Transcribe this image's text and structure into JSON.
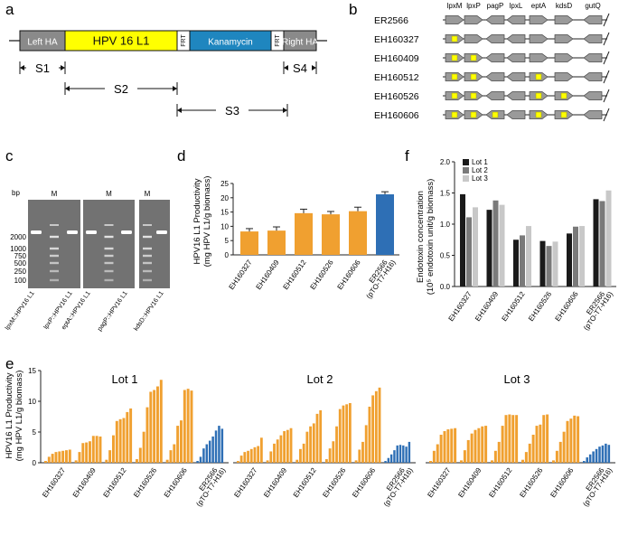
{
  "panels": {
    "a": {
      "letter": "a",
      "segments": [
        {
          "label": "Left HA",
          "fill": "#8a8a8a",
          "text_color": "#ffffff"
        },
        {
          "label": "HPV 16 L1",
          "fill": "#ffff00",
          "text_color": "#111111"
        },
        {
          "label": "FRT",
          "fill": "#ffffff",
          "text_color": "#111111"
        },
        {
          "label": "Kanamycin",
          "fill": "#1f86bf",
          "text_color": "#ffffff"
        },
        {
          "label": "FRT",
          "fill": "#ffffff",
          "text_color": "#111111"
        },
        {
          "label": "Right HA",
          "fill": "#8a8a8a",
          "text_color": "#ffffff"
        }
      ],
      "spans": [
        {
          "label": "S1"
        },
        {
          "label": "S2"
        },
        {
          "label": "S3"
        },
        {
          "label": "S4"
        }
      ]
    },
    "b": {
      "letter": "b",
      "genes": [
        "lpxM",
        "lpxP",
        "pagP",
        "lpxL",
        "eptA",
        "kdsD",
        "gutQ"
      ],
      "strains": [
        {
          "name": "ER2566",
          "yellow_marks": []
        },
        {
          "name": "EH160327",
          "yellow_marks": [
            0
          ]
        },
        {
          "name": "EH160409",
          "yellow_marks": [
            0,
            1
          ]
        },
        {
          "name": "EH160512",
          "yellow_marks": [
            0,
            1,
            4
          ]
        },
        {
          "name": "EH160526",
          "yellow_marks": [
            0,
            1,
            4,
            5
          ]
        },
        {
          "name": "EH160606",
          "yellow_marks": [
            0,
            1,
            2,
            4,
            5
          ]
        }
      ]
    },
    "c": {
      "letter": "c",
      "bp_label": "bp",
      "marker_label": "M",
      "ladder": [
        "2000",
        "1000",
        "750",
        "500",
        "250",
        "100"
      ],
      "lanes": [
        "lpxM::HPV16 L1",
        "lpxP::HPV16 L1",
        "eptA::HPV16 L1",
        "pagP::HPV16 L1",
        "kdsD::HPV16 L1"
      ]
    },
    "d": {
      "letter": "d"
    },
    "e": {
      "letter": "e"
    },
    "f": {
      "letter": "f"
    }
  },
  "colors": {
    "orange": "#f0a030",
    "blue": "#2e6fb5",
    "lot1": "#1a1a1a",
    "lot2": "#7a7a7a",
    "lot3": "#c8c8c8"
  },
  "chart_data": [
    {
      "id": "d",
      "type": "bar",
      "ylabel": [
        "HPV16 L1 Productivity",
        "(mg HPV L1/g biomass)"
      ],
      "categories": [
        "EH160327",
        "EH160409",
        "EH160512",
        "EH160526",
        "EH160606",
        "ER2566\n(pTO-T7-H16)"
      ],
      "values": [
        8.2,
        8.5,
        14.6,
        14.2,
        15.3,
        21.2
      ],
      "errors": [
        1.0,
        1.3,
        1.4,
        1.0,
        1.4,
        0.9
      ],
      "ylim": [
        0,
        25
      ],
      "yticks": [
        0,
        5,
        10,
        15,
        20,
        25
      ]
    },
    {
      "id": "f",
      "type": "bar",
      "ylabel": [
        "Endotoxin concentration",
        "(10⁵ endotoxin unit/g biomass)"
      ],
      "categories": [
        "EH160327",
        "EH160409",
        "EH160512",
        "EH160526",
        "EH160606",
        "ER2566\n(pTO-T7-H16)"
      ],
      "series": [
        {
          "name": "Lot 1",
          "values": [
            1.48,
            1.23,
            0.75,
            0.73,
            0.85,
            1.4
          ]
        },
        {
          "name": "Lot 2",
          "values": [
            1.11,
            1.38,
            0.82,
            0.65,
            0.96,
            1.37
          ]
        },
        {
          "name": "Lot 3",
          "values": [
            1.27,
            1.31,
            0.97,
            0.72,
            0.97,
            1.54
          ]
        }
      ],
      "ylim": [
        0,
        2.0
      ],
      "yticks": [
        0.0,
        0.5,
        1.0,
        1.5,
        2.0
      ]
    },
    {
      "id": "e",
      "type": "bar",
      "ylabel": [
        "HPV16 L1 Productivity",
        "(mg HPV L1/g biomass)"
      ],
      "ylim": [
        0,
        15
      ],
      "yticks": [
        0,
        5,
        10,
        15
      ],
      "categories": [
        "EH160327",
        "EH160409",
        "EH160512",
        "EH160526",
        "EH160606",
        "ER2566\n(pTO-T7-H16)"
      ],
      "lots": [
        {
          "title": "Lot 1",
          "groups": [
            [
              0.3,
              1.0,
              1.5,
              1.8,
              1.9,
              2.0,
              2.1,
              2.2
            ],
            [
              0.4,
              1.8,
              3.3,
              3.4,
              3.6,
              4.5,
              4.5,
              4.4
            ],
            [
              0.5,
              2.1,
              4.6,
              7.0,
              7.3,
              7.5,
              8.5,
              9.1
            ],
            [
              0.6,
              2.5,
              5.2,
              9.3,
              11.9,
              12.2,
              12.8,
              13.9
            ],
            [
              0.5,
              2.1,
              3.1,
              6.2,
              7.1,
              12.2,
              12.4,
              12.1
            ],
            [
              0.3,
              1.0,
              2.4,
              3.1,
              3.7,
              4.4,
              5.4,
              6.2,
              5.7
            ]
          ]
        },
        {
          "title": "Lot 2",
          "groups": [
            [
              0.3,
              1.2,
              1.8,
              2.0,
              2.3,
              2.6,
              2.8,
              4.2
            ],
            [
              0.4,
              1.9,
              3.2,
              3.9,
              4.6,
              5.3,
              5.5,
              5.8
            ],
            [
              0.5,
              2.3,
              3.2,
              5.2,
              6.1,
              6.6,
              8.2,
              8.8
            ],
            [
              0.6,
              2.4,
              3.6,
              6.1,
              9.0,
              9.6,
              9.8,
              10.0
            ],
            [
              0.4,
              2.2,
              3.5,
              6.3,
              9.4,
              11.3,
              12.0,
              12.6
            ],
            [
              0.3,
              0.8,
              1.4,
              2.1,
              2.9,
              3.0,
              2.9,
              2.7,
              3.5
            ]
          ]
        },
        {
          "title": "Lot 3",
          "groups": [
            [
              0.3,
              2.0,
              3.1,
              4.7,
              5.3,
              5.6,
              5.7,
              5.8
            ],
            [
              0.4,
              2.1,
              3.8,
              4.9,
              5.5,
              5.8,
              6.1,
              6.2
            ],
            [
              0.4,
              2.0,
              3.5,
              6.2,
              8.0,
              8.1,
              8.0,
              8.0
            ],
            [
              0.5,
              1.8,
              3.2,
              4.7,
              6.2,
              6.4,
              8.0,
              8.1
            ],
            [
              0.4,
              2.0,
              3.5,
              5.2,
              7.0,
              7.4,
              7.9,
              7.8
            ],
            [
              0.3,
              0.9,
              1.4,
              1.9,
              2.3,
              2.7,
              2.9,
              3.2,
              3.0
            ]
          ]
        }
      ]
    }
  ]
}
